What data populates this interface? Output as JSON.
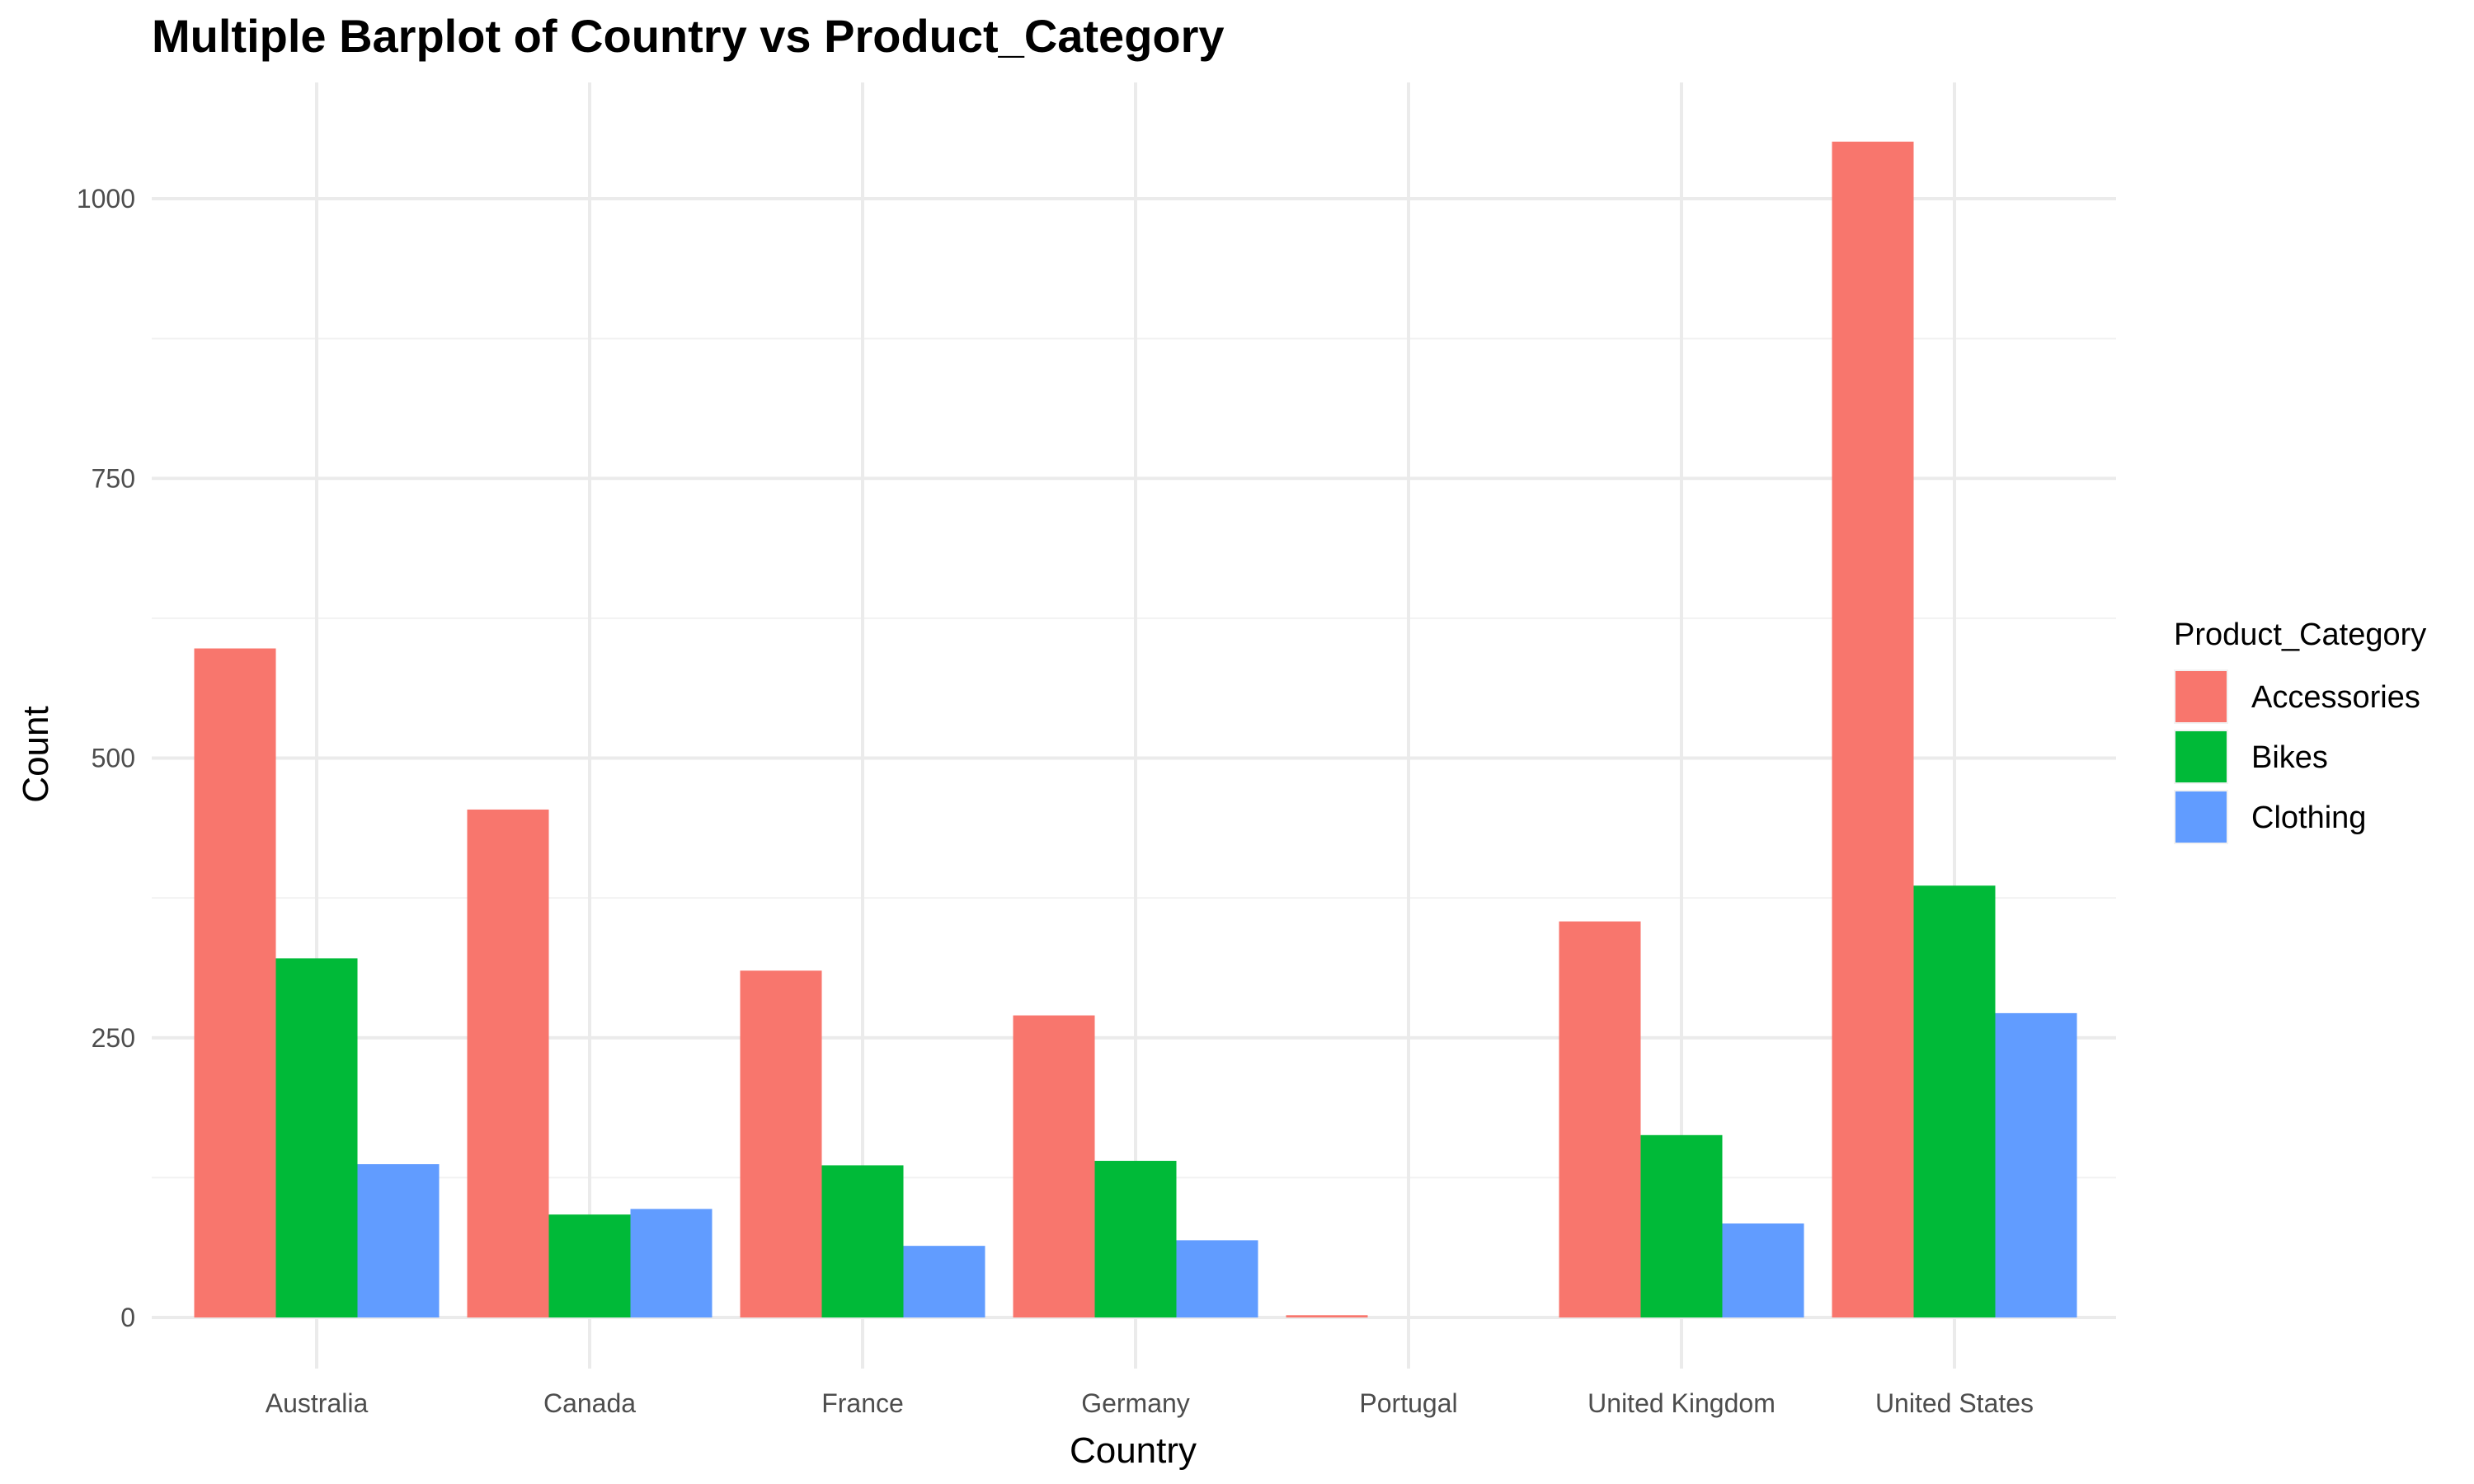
{
  "chart_data": {
    "type": "bar",
    "title": "Multiple Barplot of Country vs Product_Category",
    "xlabel": "Country",
    "ylabel": "Count",
    "ylim": [
      0,
      1100
    ],
    "yticks": [
      0,
      250,
      500,
      750,
      1000
    ],
    "grid": true,
    "legend_placement": "right",
    "legend_title": "Product_Category",
    "categories": [
      "Australia",
      "Canada",
      "France",
      "Germany",
      "Portugal",
      "United Kingdom",
      "United States"
    ],
    "series": [
      {
        "name": "Accessories",
        "color": "#f8766d",
        "values": [
          598,
          454,
          310,
          270,
          2,
          354,
          1051
        ]
      },
      {
        "name": "Bikes",
        "color": "#00ba38",
        "values": [
          321,
          92,
          136,
          140,
          null,
          163,
          386
        ]
      },
      {
        "name": "Clothing",
        "color": "#619cff",
        "values": [
          137,
          97,
          64,
          69,
          null,
          84,
          272
        ]
      }
    ]
  }
}
